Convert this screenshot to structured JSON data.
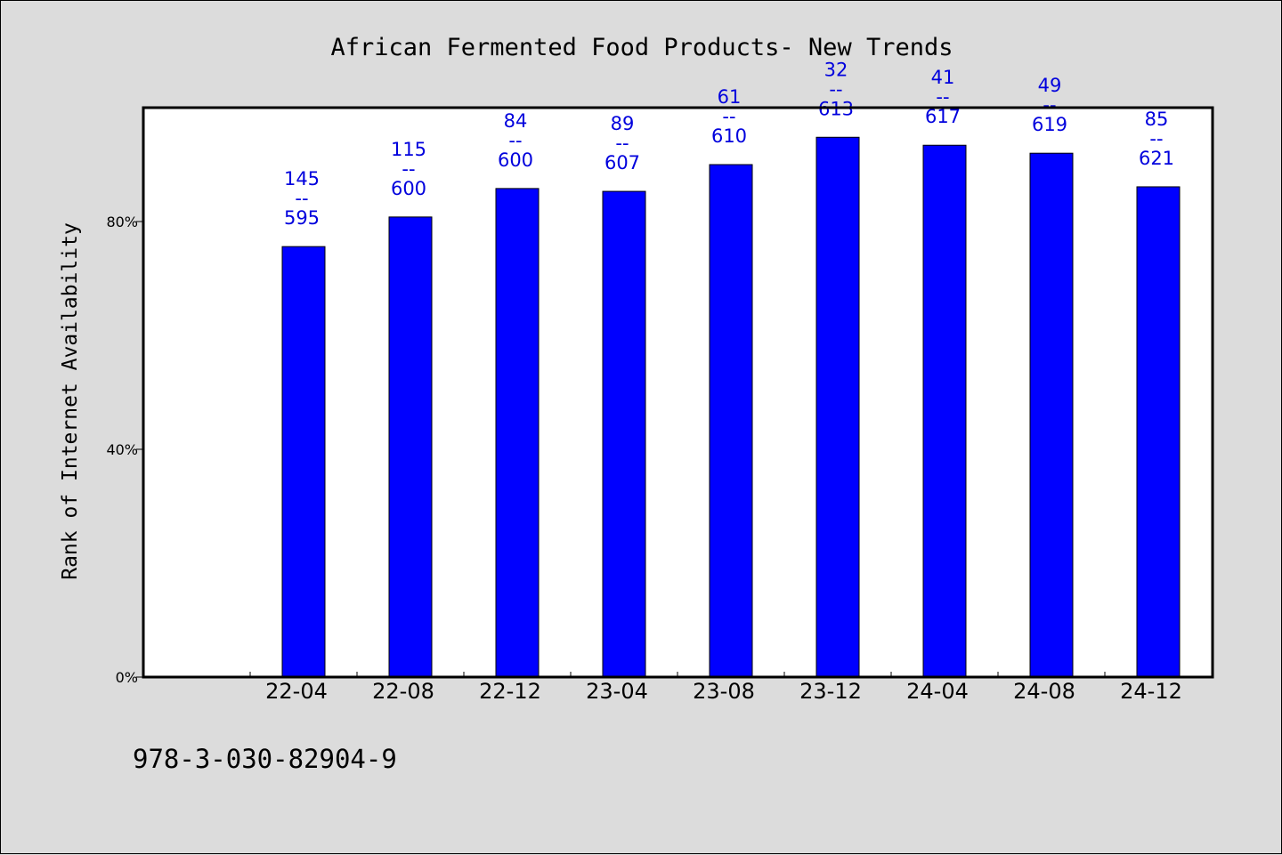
{
  "chart_data": {
    "type": "bar",
    "title": "African Fermented Food Products- New Trends",
    "ylabel": "Rank of Internet Availability",
    "xlabel": "",
    "categories": [
      "22-04",
      "22-08",
      "22-12",
      "23-04",
      "23-08",
      "23-12",
      "24-04",
      "24-08",
      "24-12"
    ],
    "values": [
      75.6,
      80.8,
      85.8,
      85.3,
      90.0,
      94.8,
      93.4,
      92.0,
      86.1
    ],
    "value_unit": "%",
    "label_top": [
      "145",
      "115",
      "84",
      "89",
      "61",
      "32",
      "41",
      "49",
      "85"
    ],
    "label_separator": "--",
    "label_bottom": [
      "595",
      "600",
      "600",
      "607",
      "610",
      "613",
      "617",
      "619",
      "621"
    ],
    "yticks": [
      "0%",
      "40%",
      "80%"
    ],
    "ytick_values": [
      0,
      40,
      80
    ],
    "ylim": [
      0,
      100
    ],
    "grid": false,
    "bar_color": "#0000ff",
    "label_color": "#0000dd",
    "plot_background": "#ffffff",
    "page_background": "#dcdcdc"
  },
  "footer": {
    "isbn": "978-3-030-82904-9"
  }
}
